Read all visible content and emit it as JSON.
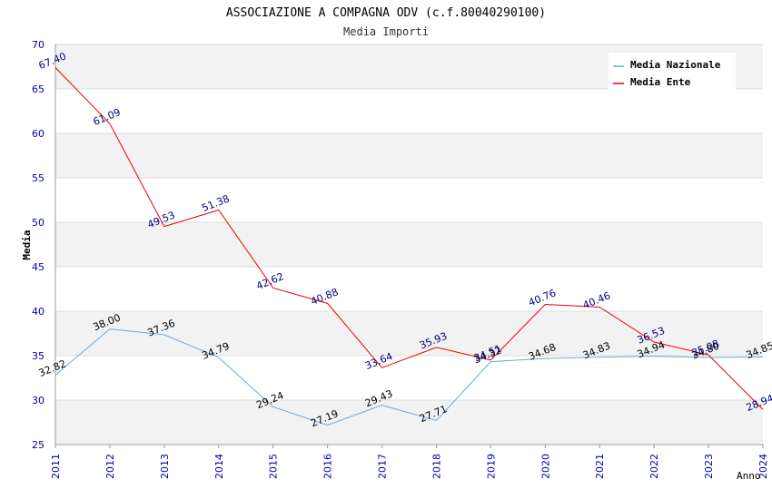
{
  "chart_data": {
    "type": "line",
    "title": "ASSOCIAZIONE A COMPAGNA ODV (c.f.80040290100)",
    "subtitle": "Media Importi",
    "xlabel": "Anno",
    "ylabel": "Media",
    "ylim": [
      25,
      70
    ],
    "y_ticks": [
      25,
      30,
      35,
      40,
      45,
      50,
      55,
      60,
      65,
      70
    ],
    "categories": [
      "2011",
      "2012",
      "2013",
      "2014",
      "2015",
      "2016",
      "2017",
      "2018",
      "2019",
      "2020",
      "2021",
      "2022",
      "2023",
      "2024"
    ],
    "legend_position": "top-right",
    "grid": true,
    "series": [
      {
        "name": "Media Nazionale",
        "color": "#6fa8dc",
        "label_color": "#000000",
        "values": [
          32.82,
          38.0,
          37.36,
          34.79,
          29.24,
          27.19,
          29.43,
          27.71,
          34.32,
          34.68,
          34.83,
          34.94,
          34.8,
          34.85
        ],
        "labels": [
          "32.82",
          "38.00",
          "37.36",
          "34.79",
          "29.24",
          "27.19",
          "29.43",
          "27.71",
          "34.32",
          "34.68",
          "34.83",
          "34.94",
          "34.80",
          "34.85"
        ]
      },
      {
        "name": "Media Ente",
        "color": "#ee0000",
        "label_color": "#000080",
        "values": [
          67.4,
          61.09,
          49.53,
          51.38,
          42.62,
          40.88,
          33.64,
          35.93,
          34.51,
          40.76,
          40.46,
          36.53,
          35.08,
          28.94
        ],
        "labels": [
          "67.40",
          "61.09",
          "49.53",
          "51.38",
          "42.62",
          "40.88",
          "33.64",
          "35.93",
          "34.51",
          "40.76",
          "40.46",
          "36.53",
          "35.08",
          "28.94"
        ]
      }
    ],
    "colors": {
      "band": "#f2f2f2",
      "gridline": "#dddddd",
      "axis": "#999999",
      "tick_label": "#0000aa",
      "title": "#000000",
      "subtitle": "#333333"
    }
  }
}
